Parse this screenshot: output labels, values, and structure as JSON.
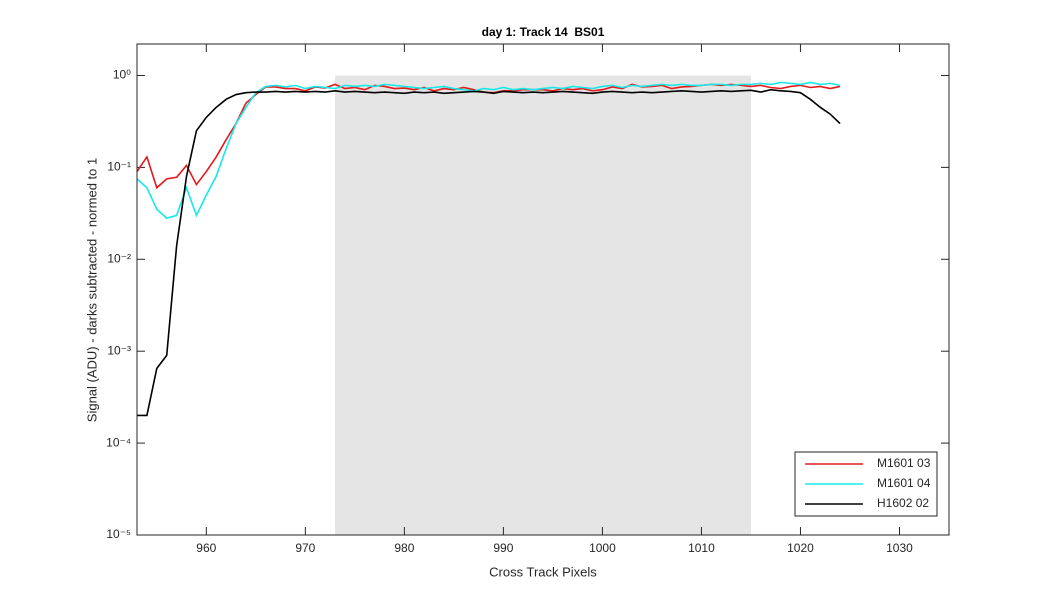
{
  "chart_data": {
    "type": "line",
    "title": "day 1: Track 14  BS01",
    "x_label": "Cross Track Pixels",
    "y_label": "Signal (ADU) - darks subtracted - normed to 1",
    "y_scale": "log",
    "x": [
      953,
      954,
      955,
      956,
      957,
      958,
      959,
      960,
      961,
      962,
      963,
      964,
      965,
      966,
      967,
      968,
      969,
      970,
      971,
      972,
      973,
      974,
      975,
      976,
      977,
      978,
      979,
      980,
      981,
      982,
      983,
      984,
      985,
      986,
      987,
      988,
      989,
      990,
      991,
      992,
      993,
      994,
      995,
      996,
      997,
      998,
      999,
      1000,
      1001,
      1002,
      1003,
      1004,
      1005,
      1006,
      1007,
      1008,
      1009,
      1010,
      1011,
      1012,
      1013,
      1014,
      1015,
      1016,
      1017,
      1018,
      1019,
      1020,
      1021,
      1022,
      1023,
      1024
    ],
    "series": [
      {
        "name": "M1601 03",
        "color": "#e31a1c",
        "values": [
          0.09,
          0.13,
          0.06,
          0.075,
          0.078,
          0.105,
          0.065,
          0.09,
          0.13,
          0.2,
          0.3,
          0.5,
          0.62,
          0.75,
          0.75,
          0.72,
          0.72,
          0.68,
          0.75,
          0.73,
          0.8,
          0.72,
          0.74,
          0.7,
          0.78,
          0.76,
          0.72,
          0.73,
          0.7,
          0.74,
          0.68,
          0.72,
          0.7,
          0.74,
          0.7,
          0.66,
          0.65,
          0.68,
          0.68,
          0.7,
          0.7,
          0.7,
          0.68,
          0.72,
          0.7,
          0.72,
          0.68,
          0.7,
          0.75,
          0.72,
          0.8,
          0.75,
          0.76,
          0.78,
          0.72,
          0.75,
          0.76,
          0.78,
          0.8,
          0.78,
          0.8,
          0.78,
          0.76,
          0.78,
          0.74,
          0.72,
          0.76,
          0.78,
          0.74,
          0.76,
          0.72,
          0.76
        ]
      },
      {
        "name": "M1601 04",
        "color": "#17e8e8",
        "values": [
          0.075,
          0.06,
          0.035,
          0.028,
          0.03,
          0.06,
          0.03,
          0.05,
          0.08,
          0.16,
          0.3,
          0.45,
          0.65,
          0.76,
          0.78,
          0.75,
          0.78,
          0.72,
          0.76,
          0.74,
          0.72,
          0.78,
          0.76,
          0.78,
          0.76,
          0.8,
          0.78,
          0.76,
          0.74,
          0.72,
          0.74,
          0.76,
          0.72,
          0.7,
          0.68,
          0.72,
          0.7,
          0.74,
          0.7,
          0.72,
          0.7,
          0.72,
          0.74,
          0.72,
          0.76,
          0.74,
          0.72,
          0.76,
          0.78,
          0.74,
          0.78,
          0.76,
          0.78,
          0.8,
          0.78,
          0.8,
          0.78,
          0.78,
          0.8,
          0.8,
          0.78,
          0.8,
          0.8,
          0.82,
          0.8,
          0.84,
          0.82,
          0.8,
          0.84,
          0.8,
          0.82,
          0.78
        ]
      },
      {
        "name": "H1602 02",
        "color": "#000000",
        "values": [
          0.0002,
          0.0002,
          0.00065,
          0.0009,
          0.014,
          0.08,
          0.25,
          0.35,
          0.45,
          0.55,
          0.62,
          0.65,
          0.66,
          0.66,
          0.67,
          0.66,
          0.67,
          0.66,
          0.67,
          0.66,
          0.68,
          0.66,
          0.67,
          0.66,
          0.65,
          0.66,
          0.65,
          0.64,
          0.66,
          0.65,
          0.66,
          0.64,
          0.65,
          0.66,
          0.67,
          0.66,
          0.64,
          0.67,
          0.66,
          0.65,
          0.66,
          0.65,
          0.66,
          0.67,
          0.66,
          0.65,
          0.64,
          0.66,
          0.67,
          0.66,
          0.65,
          0.66,
          0.65,
          0.66,
          0.67,
          0.68,
          0.67,
          0.66,
          0.67,
          0.68,
          0.67,
          0.68,
          0.69,
          0.66,
          0.7,
          0.68,
          0.67,
          0.65,
          0.55,
          0.45,
          0.38,
          0.3
        ]
      }
    ],
    "shaded_region": {
      "x": [
        973,
        1015
      ],
      "y": [
        1e-05,
        1
      ],
      "color": "#e5e5e5"
    },
    "xlim": [
      953,
      1035
    ],
    "xticks": [
      960,
      970,
      980,
      990,
      1000,
      1010,
      1020,
      1030
    ],
    "ylim": [
      1e-05,
      2.2
    ],
    "yticks": [
      {
        "value": 1e-05,
        "label": "10⁻⁵"
      },
      {
        "value": 0.0001,
        "label": "10⁻⁴"
      },
      {
        "value": 0.001,
        "label": "10⁻³"
      },
      {
        "value": 0.01,
        "label": "10⁻²"
      },
      {
        "value": 0.1,
        "label": "10⁻¹"
      },
      {
        "value": 1,
        "label": "10⁰"
      }
    ],
    "grid": false,
    "legend_location": "southeast"
  }
}
